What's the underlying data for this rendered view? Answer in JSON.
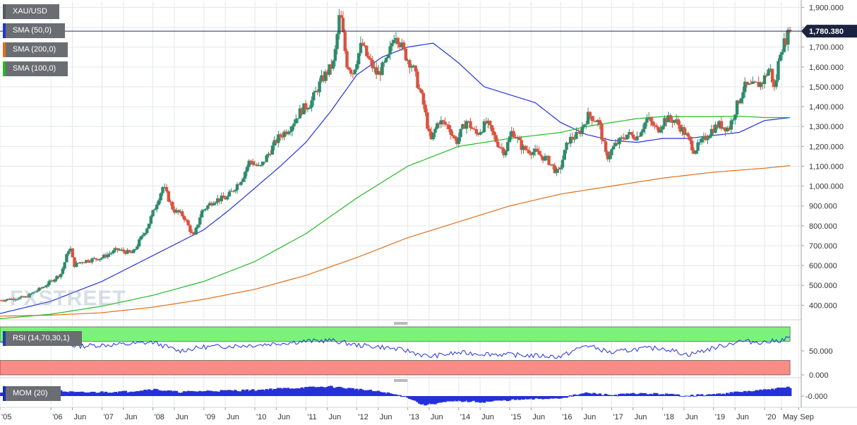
{
  "symbol": "XAU/USD",
  "indicators": [
    {
      "label": "SMA (50,0)",
      "color": "#2233dd"
    },
    {
      "label": "SMA (200,0)",
      "color": "#e0701a"
    },
    {
      "label": "SMA (100,0)",
      "color": "#22bb22"
    }
  ],
  "price_tag": "1,780.380",
  "watermark": "FXSTREET",
  "rsi_label": "RSI (14,70,30,1)",
  "mom_label": "MOM (20)",
  "chart_data": {
    "type": "candlestick",
    "timeframe": "weekly",
    "y_ticks": [
      "1,900.000",
      "1,800.000",
      "1,700.000",
      "1,600.000",
      "1,500.000",
      "1,400.000",
      "1,300.000",
      "1,200.000",
      "1,100.000",
      "1,000.000",
      "900.000",
      "800.000",
      "700.000",
      "600.000",
      "500.000",
      "400.000"
    ],
    "ylim": [
      330,
      1930
    ],
    "last_price": 1780.38,
    "x_ticks": [
      "'05",
      "'06",
      "Jun",
      "'07",
      "Jun",
      "'08",
      "Jun",
      "'09",
      "Jun",
      "'10",
      "Jun",
      "'11",
      "Jun",
      "'12",
      "Jun",
      "'13",
      "Jun",
      "'14",
      "Jun",
      "'15",
      "Jun",
      "'16",
      "Jun",
      "'17",
      "Jun",
      "'18",
      "Jun",
      "'19",
      "Jun",
      "'20",
      "May",
      "Sep"
    ],
    "x_tick_times": [
      2005.0,
      2006.0,
      2006.42,
      2007.0,
      2007.42,
      2008.0,
      2008.42,
      2009.0,
      2009.42,
      2010.0,
      2010.42,
      2011.0,
      2011.42,
      2012.0,
      2012.42,
      2013.0,
      2013.42,
      2014.0,
      2014.42,
      2015.0,
      2015.42,
      2016.0,
      2016.42,
      2017.0,
      2017.42,
      2018.0,
      2018.42,
      2019.0,
      2019.42,
      2020.0,
      2020.33,
      2020.67
    ],
    "xlim": [
      2005.0,
      2020.72
    ],
    "close_anchors": [
      [
        2005.0,
        425
      ],
      [
        2005.5,
        440
      ],
      [
        2005.9,
        500
      ],
      [
        2006.2,
        560
      ],
      [
        2006.37,
        700
      ],
      [
        2006.45,
        600
      ],
      [
        2006.6,
        620
      ],
      [
        2006.8,
        630
      ],
      [
        2007.0,
        640
      ],
      [
        2007.3,
        680
      ],
      [
        2007.6,
        660
      ],
      [
        2007.75,
        730
      ],
      [
        2007.9,
        800
      ],
      [
        2008.05,
        900
      ],
      [
        2008.2,
        1000
      ],
      [
        2008.4,
        880
      ],
      [
        2008.6,
        850
      ],
      [
        2008.8,
        740
      ],
      [
        2008.95,
        870
      ],
      [
        2009.2,
        930
      ],
      [
        2009.45,
        940
      ],
      [
        2009.75,
        1040
      ],
      [
        2009.9,
        1130
      ],
      [
        2010.1,
        1090
      ],
      [
        2010.45,
        1240
      ],
      [
        2010.7,
        1300
      ],
      [
        2010.9,
        1380
      ],
      [
        2011.1,
        1420
      ],
      [
        2011.3,
        1530
      ],
      [
        2011.55,
        1620
      ],
      [
        2011.67,
        1880
      ],
      [
        2011.8,
        1620
      ],
      [
        2011.92,
        1570
      ],
      [
        2012.1,
        1720
      ],
      [
        2012.2,
        1650
      ],
      [
        2012.4,
        1560
      ],
      [
        2012.6,
        1630
      ],
      [
        2012.75,
        1780
      ],
      [
        2012.95,
        1660
      ],
      [
        2013.1,
        1600
      ],
      [
        2013.3,
        1420
      ],
      [
        2013.45,
        1220
      ],
      [
        2013.6,
        1330
      ],
      [
        2013.8,
        1300
      ],
      [
        2013.95,
        1220
      ],
      [
        2014.15,
        1330
      ],
      [
        2014.35,
        1260
      ],
      [
        2014.55,
        1320
      ],
      [
        2014.75,
        1220
      ],
      [
        2014.9,
        1170
      ],
      [
        2015.05,
        1280
      ],
      [
        2015.25,
        1190
      ],
      [
        2015.5,
        1170
      ],
      [
        2015.75,
        1130
      ],
      [
        2015.95,
        1060
      ],
      [
        2016.15,
        1230
      ],
      [
        2016.35,
        1260
      ],
      [
        2016.55,
        1360
      ],
      [
        2016.75,
        1320
      ],
      [
        2016.9,
        1140
      ],
      [
        2017.05,
        1200
      ],
      [
        2017.3,
        1260
      ],
      [
        2017.5,
        1250
      ],
      [
        2017.7,
        1340
      ],
      [
        2017.9,
        1280
      ],
      [
        2018.05,
        1340
      ],
      [
        2018.25,
        1330
      ],
      [
        2018.45,
        1260
      ],
      [
        2018.62,
        1180
      ],
      [
        2018.8,
        1230
      ],
      [
        2018.95,
        1280
      ],
      [
        2019.1,
        1310
      ],
      [
        2019.3,
        1290
      ],
      [
        2019.45,
        1400
      ],
      [
        2019.6,
        1500
      ],
      [
        2019.75,
        1500
      ],
      [
        2019.95,
        1520
      ],
      [
        2020.1,
        1600
      ],
      [
        2020.2,
        1480
      ],
      [
        2020.3,
        1680
      ],
      [
        2020.4,
        1730
      ],
      [
        2020.5,
        1780.38
      ]
    ],
    "sma": {
      "SMA (50,0)": [
        [
          2005.0,
          358
        ],
        [
          2006.0,
          420
        ],
        [
          2007.0,
          520
        ],
        [
          2008.0,
          650
        ],
        [
          2009.0,
          780
        ],
        [
          2009.5,
          880
        ],
        [
          2010.0,
          990
        ],
        [
          2010.5,
          1100
        ],
        [
          2011.0,
          1220
        ],
        [
          2011.5,
          1380
        ],
        [
          2012.0,
          1560
        ],
        [
          2012.5,
          1650
        ],
        [
          2013.0,
          1700
        ],
        [
          2013.5,
          1720
        ],
        [
          2014.0,
          1620
        ],
        [
          2014.5,
          1500
        ],
        [
          2014.75,
          1480
        ],
        [
          2015.0,
          1460
        ],
        [
          2015.5,
          1420
        ],
        [
          2016.0,
          1320
        ],
        [
          2016.5,
          1260
        ],
        [
          2017.0,
          1230
        ],
        [
          2017.5,
          1220
        ],
        [
          2018.0,
          1240
        ],
        [
          2018.5,
          1240
        ],
        [
          2019.0,
          1255
        ],
        [
          2019.5,
          1270
        ],
        [
          2020.0,
          1330
        ],
        [
          2020.5,
          1345
        ]
      ],
      "SMA (200,0)": [
        [
          2005.0,
          345
        ],
        [
          2006.0,
          350
        ],
        [
          2007.0,
          362
        ],
        [
          2008.0,
          390
        ],
        [
          2009.0,
          430
        ],
        [
          2010.0,
          480
        ],
        [
          2011.0,
          550
        ],
        [
          2012.0,
          640
        ],
        [
          2013.0,
          740
        ],
        [
          2014.0,
          820
        ],
        [
          2015.0,
          900
        ],
        [
          2016.0,
          960
        ],
        [
          2017.0,
          1000
        ],
        [
          2018.0,
          1040
        ],
        [
          2019.0,
          1070
        ],
        [
          2020.0,
          1090
        ],
        [
          2020.5,
          1103
        ]
      ],
      "SMA (100,0)": [
        [
          2005.0,
          332
        ],
        [
          2006.0,
          355
        ],
        [
          2007.0,
          395
        ],
        [
          2008.0,
          450
        ],
        [
          2009.0,
          520
        ],
        [
          2010.0,
          620
        ],
        [
          2011.0,
          760
        ],
        [
          2012.0,
          940
        ],
        [
          2013.0,
          1100
        ],
        [
          2014.0,
          1200
        ],
        [
          2015.0,
          1240
        ],
        [
          2016.0,
          1270
        ],
        [
          2016.5,
          1300
        ],
        [
          2017.0,
          1320
        ],
        [
          2017.5,
          1340
        ],
        [
          2018.0,
          1350
        ],
        [
          2018.5,
          1350
        ],
        [
          2019.0,
          1350
        ],
        [
          2019.5,
          1352
        ],
        [
          2020.0,
          1345
        ],
        [
          2020.5,
          1345
        ]
      ]
    },
    "rsi": {
      "y_ticks": [
        "50.000",
        "0.000"
      ],
      "ylim": [
        0,
        100
      ],
      "overbought": 70,
      "oversold": 30,
      "anchors": [
        [
          2005.0,
          66
        ],
        [
          2005.5,
          68
        ],
        [
          2006.0,
          72
        ],
        [
          2006.5,
          60
        ],
        [
          2007.0,
          62
        ],
        [
          2007.5,
          64
        ],
        [
          2008.0,
          68
        ],
        [
          2008.5,
          50
        ],
        [
          2009.0,
          58
        ],
        [
          2009.5,
          60
        ],
        [
          2010.0,
          62
        ],
        [
          2010.5,
          66
        ],
        [
          2011.0,
          70
        ],
        [
          2011.5,
          72
        ],
        [
          2012.0,
          62
        ],
        [
          2012.5,
          58
        ],
        [
          2013.0,
          50
        ],
        [
          2013.4,
          38
        ],
        [
          2013.7,
          42
        ],
        [
          2014.0,
          46
        ],
        [
          2014.5,
          44
        ],
        [
          2015.0,
          42
        ],
        [
          2015.5,
          40
        ],
        [
          2016.0,
          38
        ],
        [
          2016.5,
          62
        ],
        [
          2017.0,
          46
        ],
        [
          2017.5,
          54
        ],
        [
          2018.0,
          56
        ],
        [
          2018.5,
          42
        ],
        [
          2019.0,
          56
        ],
        [
          2019.5,
          70
        ],
        [
          2020.0,
          68
        ],
        [
          2020.3,
          72
        ],
        [
          2020.5,
          78
        ]
      ]
    },
    "mom": {
      "y_ticks": [
        "0.000"
      ],
      "anchors": [
        [
          2005.0,
          40
        ],
        [
          2005.5,
          45
        ],
        [
          2006.0,
          60
        ],
        [
          2006.5,
          35
        ],
        [
          2007.0,
          40
        ],
        [
          2007.5,
          45
        ],
        [
          2008.0,
          70
        ],
        [
          2008.5,
          40
        ],
        [
          2009.0,
          50
        ],
        [
          2009.5,
          55
        ],
        [
          2010.0,
          60
        ],
        [
          2010.5,
          75
        ],
        [
          2011.0,
          85
        ],
        [
          2011.5,
          95
        ],
        [
          2012.0,
          70
        ],
        [
          2012.5,
          40
        ],
        [
          2013.0,
          -10
        ],
        [
          2013.3,
          -90
        ],
        [
          2013.6,
          -70
        ],
        [
          2014.0,
          -50
        ],
        [
          2014.5,
          -60
        ],
        [
          2015.0,
          -40
        ],
        [
          2015.5,
          -30
        ],
        [
          2016.0,
          -20
        ],
        [
          2016.5,
          30
        ],
        [
          2017.0,
          10
        ],
        [
          2017.5,
          25
        ],
        [
          2018.0,
          20
        ],
        [
          2018.5,
          5
        ],
        [
          2019.0,
          15
        ],
        [
          2019.5,
          40
        ],
        [
          2020.0,
          60
        ],
        [
          2020.5,
          90
        ]
      ]
    }
  }
}
